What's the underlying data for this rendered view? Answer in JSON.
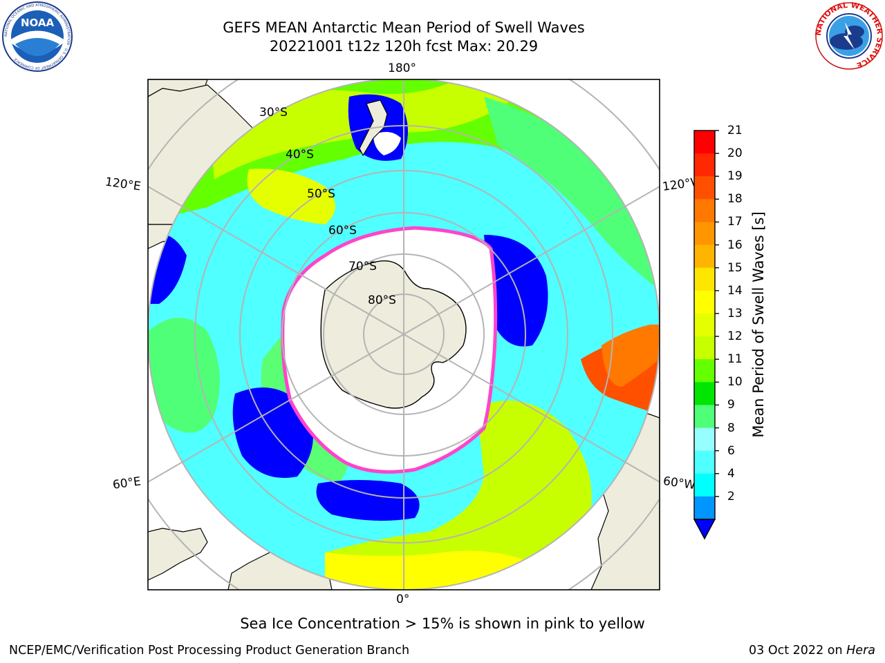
{
  "title": {
    "line1": "GEFS MEAN Antarctic Mean Period of Swell Waves",
    "line2": "20221001 t12z 120h fcst   Max: 20.29"
  },
  "logos": {
    "noaa": {
      "text": "NOAA",
      "ring": "NATIONAL OCEANIC AND ATMOSPHERIC ADMINISTRATION · U.S. DEPARTMENT OF COMMERCE"
    },
    "nws": {
      "ring": "NATIONAL WEATHER SERVICE"
    }
  },
  "map": {
    "longitude_labels": {
      "top": "180°",
      "left_upper": "120°E",
      "right_upper": "120°W",
      "left_lower": "60°E",
      "right_lower": "60°W",
      "bottom": "0°"
    },
    "latitude_labels": [
      "30°S",
      "40°S",
      "50°S",
      "60°S",
      "70°S",
      "80°S"
    ],
    "colors": {
      "land": "#eeecdc",
      "ice_interior": "#ffffff",
      "ice_edge": "#ff44cc",
      "grid": "#b4b4b4"
    }
  },
  "colorbar": {
    "label": "Mean Period of Swell Waves [s]",
    "ticks": [
      "21",
      "20",
      "19",
      "18",
      "17",
      "16",
      "15",
      "14",
      "13",
      "12",
      "11",
      "10",
      "9",
      "8",
      "6",
      "4",
      "2"
    ],
    "colors_top_to_bottom": [
      "#ff0000",
      "#ff2800",
      "#ff5000",
      "#ff7800",
      "#ff9600",
      "#ffb400",
      "#ffe600",
      "#ffff00",
      "#e6ff00",
      "#c8ff00",
      "#64ff00",
      "#00e600",
      "#50ff78",
      "#96ffff",
      "#50ffff",
      "#00ffff",
      "#0096ff"
    ],
    "under_color": "#0000ff"
  },
  "caption": "Sea Ice Concentration > 15% is shown in pink to yellow",
  "footer": {
    "left": "NCEP/EMC/Verification Post Processing Product Generation Branch",
    "right_prefix": "03 Oct 2022 on ",
    "right_italic": "Hera"
  }
}
